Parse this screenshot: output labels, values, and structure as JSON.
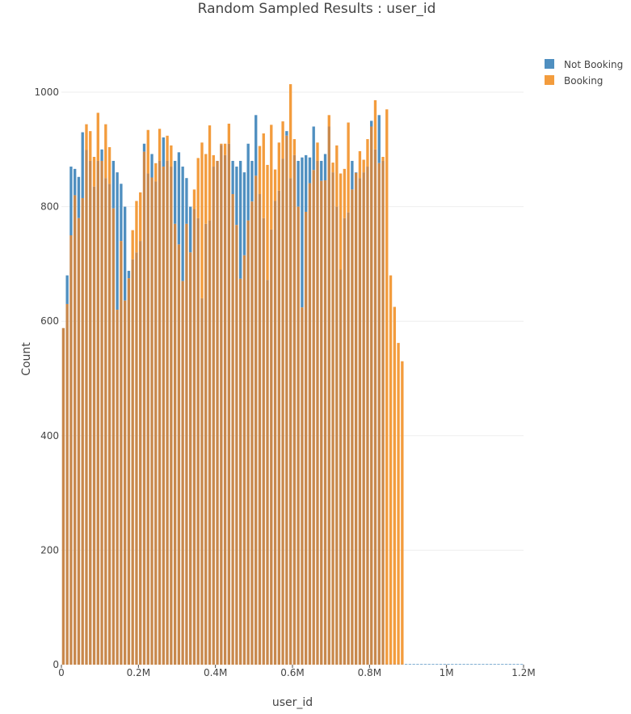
{
  "chart_data": {
    "type": "bar",
    "title": "Random Sampled Results : user_id",
    "xlabel": "user_id",
    "ylabel": "Count",
    "xlim": [
      0,
      1200000
    ],
    "ylim": [
      0,
      1050
    ],
    "x_ticks": [
      {
        "value": 0,
        "label": "0"
      },
      {
        "value": 200000,
        "label": "0.2M"
      },
      {
        "value": 400000,
        "label": "0.4M"
      },
      {
        "value": 600000,
        "label": "0.6M"
      },
      {
        "value": 800000,
        "label": "0.8M"
      },
      {
        "value": 1000000,
        "label": "1M"
      },
      {
        "value": 1200000,
        "label": "1.2M"
      }
    ],
    "y_ticks": [
      {
        "value": 0,
        "label": "0"
      },
      {
        "value": 200,
        "label": "200"
      },
      {
        "value": 400,
        "label": "400"
      },
      {
        "value": 600,
        "label": "600"
      },
      {
        "value": 800,
        "label": "800"
      },
      {
        "value": 1000,
        "label": "1000"
      }
    ],
    "grid": "horizontal",
    "legend_position": "top-right",
    "bar_mode": "overlay",
    "bin_size": 10000,
    "colors": {
      "Not Booking": "#4f8fc0",
      "Booking": "#f39c3d",
      "overlap": "#c8884c"
    },
    "series": [
      {
        "name": "Not Booking",
        "values": [
          588,
          680,
          870,
          866,
          852,
          930,
          899,
          880,
          835,
          880,
          900,
          850,
          840,
          880,
          860,
          840,
          800,
          688,
          708,
          720,
          740,
          910,
          858,
          892,
          844,
          880,
          921,
          880,
          870,
          880,
          895,
          870,
          850,
          800,
          796,
          780,
          640,
          770,
          776,
          870,
          880,
          908,
          890,
          910,
          880,
          870,
          880,
          860,
          910,
          880,
          960,
          822,
          780,
          672,
          760,
          810,
          828,
          884,
          932,
          850,
          890,
          880,
          886,
          890,
          886,
          940,
          880,
          880,
          892,
          940,
          860,
          800,
          690,
          780,
          790,
          880,
          860,
          850,
          860,
          870,
          950,
          900,
          960,
          880,
          1,
          1,
          1,
          1,
          1,
          1,
          1,
          1,
          1,
          1,
          1,
          1,
          1,
          1,
          1,
          1,
          1,
          1,
          1,
          1,
          1,
          1,
          1,
          1,
          1,
          1,
          1,
          1,
          1,
          1,
          1,
          1,
          1,
          1,
          1,
          1
        ]
      },
      {
        "name": "Booking",
        "values": [
          588,
          630,
          750,
          820,
          780,
          815,
          944,
          932,
          887,
          964,
          880,
          944,
          904,
          797,
          620,
          740,
          636,
          675,
          759,
          810,
          825,
          896,
          934,
          851,
          876,
          936,
          870,
          924,
          907,
          770,
          734,
          670,
          770,
          720,
          830,
          885,
          912,
          892,
          942,
          890,
          880,
          910,
          910,
          945,
          822,
          768,
          674,
          715,
          776,
          809,
          854,
          906,
          928,
          873,
          943,
          865,
          912,
          949,
          924,
          1014,
          918,
          800,
          624,
          791,
          841,
          864,
          912,
          845,
          846,
          960,
          877,
          907,
          858,
          866,
          947,
          830,
          859,
          897,
          882,
          918,
          940,
          986,
          876,
          887,
          970,
          680,
          625,
          562,
          530,
          0,
          0,
          0,
          0,
          0,
          0,
          0,
          0,
          0,
          0,
          0,
          0,
          0,
          0,
          0,
          0,
          0,
          0,
          0,
          0,
          0,
          0,
          0,
          0,
          0,
          0,
          0,
          0,
          0,
          0,
          0
        ]
      }
    ]
  }
}
